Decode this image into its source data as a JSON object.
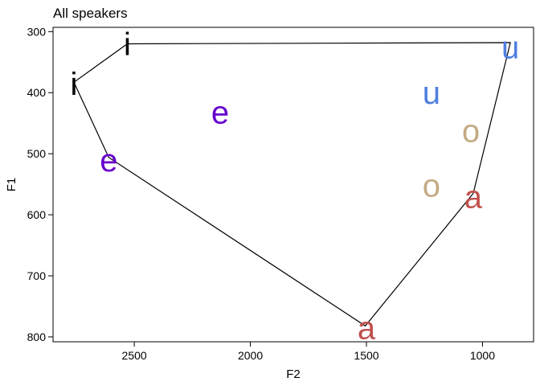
{
  "chart_data": {
    "type": "scatter",
    "title": "All speakers",
    "xlabel": "F2",
    "ylabel": "F1",
    "xlim": [
      2850,
      780
    ],
    "ylim": [
      808,
      293
    ],
    "x_reversed": true,
    "y_reversed": true,
    "xticks": [
      2500,
      2000,
      1500,
      1000
    ],
    "yticks": [
      300,
      400,
      500,
      600,
      700,
      800
    ],
    "grid": false,
    "points": [
      {
        "label": "i",
        "x": 2530,
        "y": 320,
        "color": "#000000"
      },
      {
        "label": "i",
        "x": 2760,
        "y": 385,
        "color": "#000000"
      },
      {
        "label": "e",
        "x": 2130,
        "y": 432,
        "color": "#6600cc"
      },
      {
        "label": "e",
        "x": 2610,
        "y": 510,
        "color": "#6600cc"
      },
      {
        "label": "a",
        "x": 1500,
        "y": 785,
        "color": "#c0504d"
      },
      {
        "label": "a",
        "x": 1040,
        "y": 570,
        "color": "#c0504d"
      },
      {
        "label": "o",
        "x": 1050,
        "y": 462,
        "color": "#c4aa83"
      },
      {
        "label": "o",
        "x": 1220,
        "y": 552,
        "color": "#c4aa83"
      },
      {
        "label": "u",
        "x": 880,
        "y": 325,
        "color": "#4f7fe0"
      },
      {
        "label": "u",
        "x": 1220,
        "y": 400,
        "color": "#4f7fe0"
      }
    ],
    "hull": [
      {
        "x": 2530,
        "y": 320
      },
      {
        "x": 880,
        "y": 318
      },
      {
        "x": 1040,
        "y": 565
      },
      {
        "x": 1505,
        "y": 782
      },
      {
        "x": 2610,
        "y": 506
      },
      {
        "x": 2760,
        "y": 383
      }
    ]
  }
}
